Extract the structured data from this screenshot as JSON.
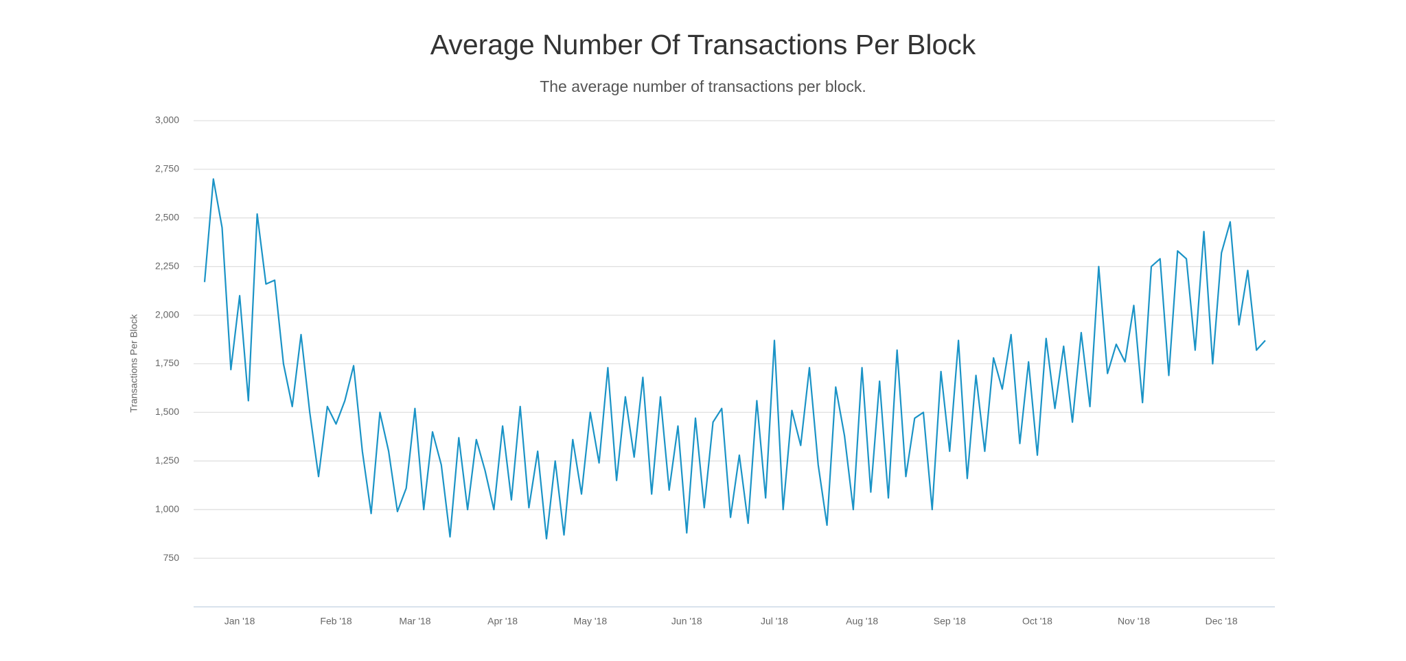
{
  "chart_data": {
    "type": "line",
    "title": "Average Number Of Transactions Per Block",
    "subtitle": "The average number of transactions per block.",
    "y_label": "Transactions Per Block",
    "categories": [
      null,
      null,
      null,
      null,
      "Jan '18",
      null,
      null,
      null,
      null,
      null,
      null,
      null,
      null,
      null,
      null,
      "Feb '18",
      null,
      null,
      null,
      null,
      null,
      null,
      null,
      null,
      "Mar '18",
      null,
      null,
      null,
      null,
      null,
      null,
      null,
      null,
      null,
      "Apr '18",
      null,
      null,
      null,
      null,
      null,
      null,
      null,
      null,
      null,
      "May '18",
      null,
      null,
      null,
      null,
      null,
      null,
      null,
      null,
      null,
      null,
      "Jun '18",
      null,
      null,
      null,
      null,
      null,
      null,
      null,
      null,
      null,
      "Jul '18",
      null,
      null,
      null,
      null,
      null,
      null,
      null,
      null,
      null,
      "Aug '18",
      null,
      null,
      null,
      null,
      null,
      null,
      null,
      null,
      null,
      "Sep '18",
      null,
      null,
      null,
      null,
      null,
      null,
      null,
      null,
      null,
      "Oct '18",
      null,
      null,
      null,
      null,
      null,
      null,
      null,
      null,
      null,
      null,
      "Nov '18",
      null,
      null,
      null,
      null,
      null,
      null,
      null,
      null,
      null,
      "Dec '18",
      null,
      null,
      null,
      null,
      null
    ],
    "series": [
      {
        "name": "Transactions Per Block",
        "color": "#1a93c6",
        "values": [
          2170,
          2700,
          2450,
          1720,
          2100,
          1560,
          2520,
          2160,
          2180,
          1750,
          1530,
          1900,
          1500,
          1170,
          1530,
          1440,
          1560,
          1740,
          1300,
          980,
          1500,
          1300,
          990,
          1110,
          1520,
          1000,
          1400,
          1230,
          860,
          1370,
          1000,
          1360,
          1200,
          1000,
          1430,
          1050,
          1530,
          1010,
          1300,
          850,
          1250,
          870,
          1360,
          1080,
          1500,
          1240,
          1730,
          1150,
          1580,
          1270,
          1680,
          1080,
          1580,
          1100,
          1430,
          880,
          1470,
          1010,
          1450,
          1520,
          960,
          1280,
          930,
          1560,
          1060,
          1870,
          1000,
          1510,
          1330,
          1730,
          1230,
          920,
          1630,
          1380,
          1000,
          1730,
          1090,
          1660,
          1060,
          1820,
          1170,
          1470,
          1500,
          1000,
          1710,
          1300,
          1870,
          1160,
          1690,
          1300,
          1780,
          1620,
          1900,
          1340,
          1760,
          1280,
          1880,
          1520,
          1840,
          1450,
          1910,
          1530,
          2250,
          1700,
          1850,
          1760,
          2050,
          1550,
          2250,
          2290,
          1690,
          2330,
          2290,
          1820,
          2430,
          1750,
          2320,
          2480,
          1950,
          2230,
          1820,
          1870
        ]
      }
    ],
    "ylim": [
      500,
      3000
    ],
    "yticks": [
      {
        "value": 750,
        "label": "750"
      },
      {
        "value": 1000,
        "label": "1,000"
      },
      {
        "value": 1250,
        "label": "1,250"
      },
      {
        "value": 1500,
        "label": "1,500"
      },
      {
        "value": 1750,
        "label": "1,750"
      },
      {
        "value": 2000,
        "label": "2,000"
      },
      {
        "value": 2250,
        "label": "2,250"
      },
      {
        "value": 2500,
        "label": "2,500"
      },
      {
        "value": 2750,
        "label": "2,750"
      },
      {
        "value": 3000,
        "label": "3,000"
      }
    ],
    "grid": true
  }
}
